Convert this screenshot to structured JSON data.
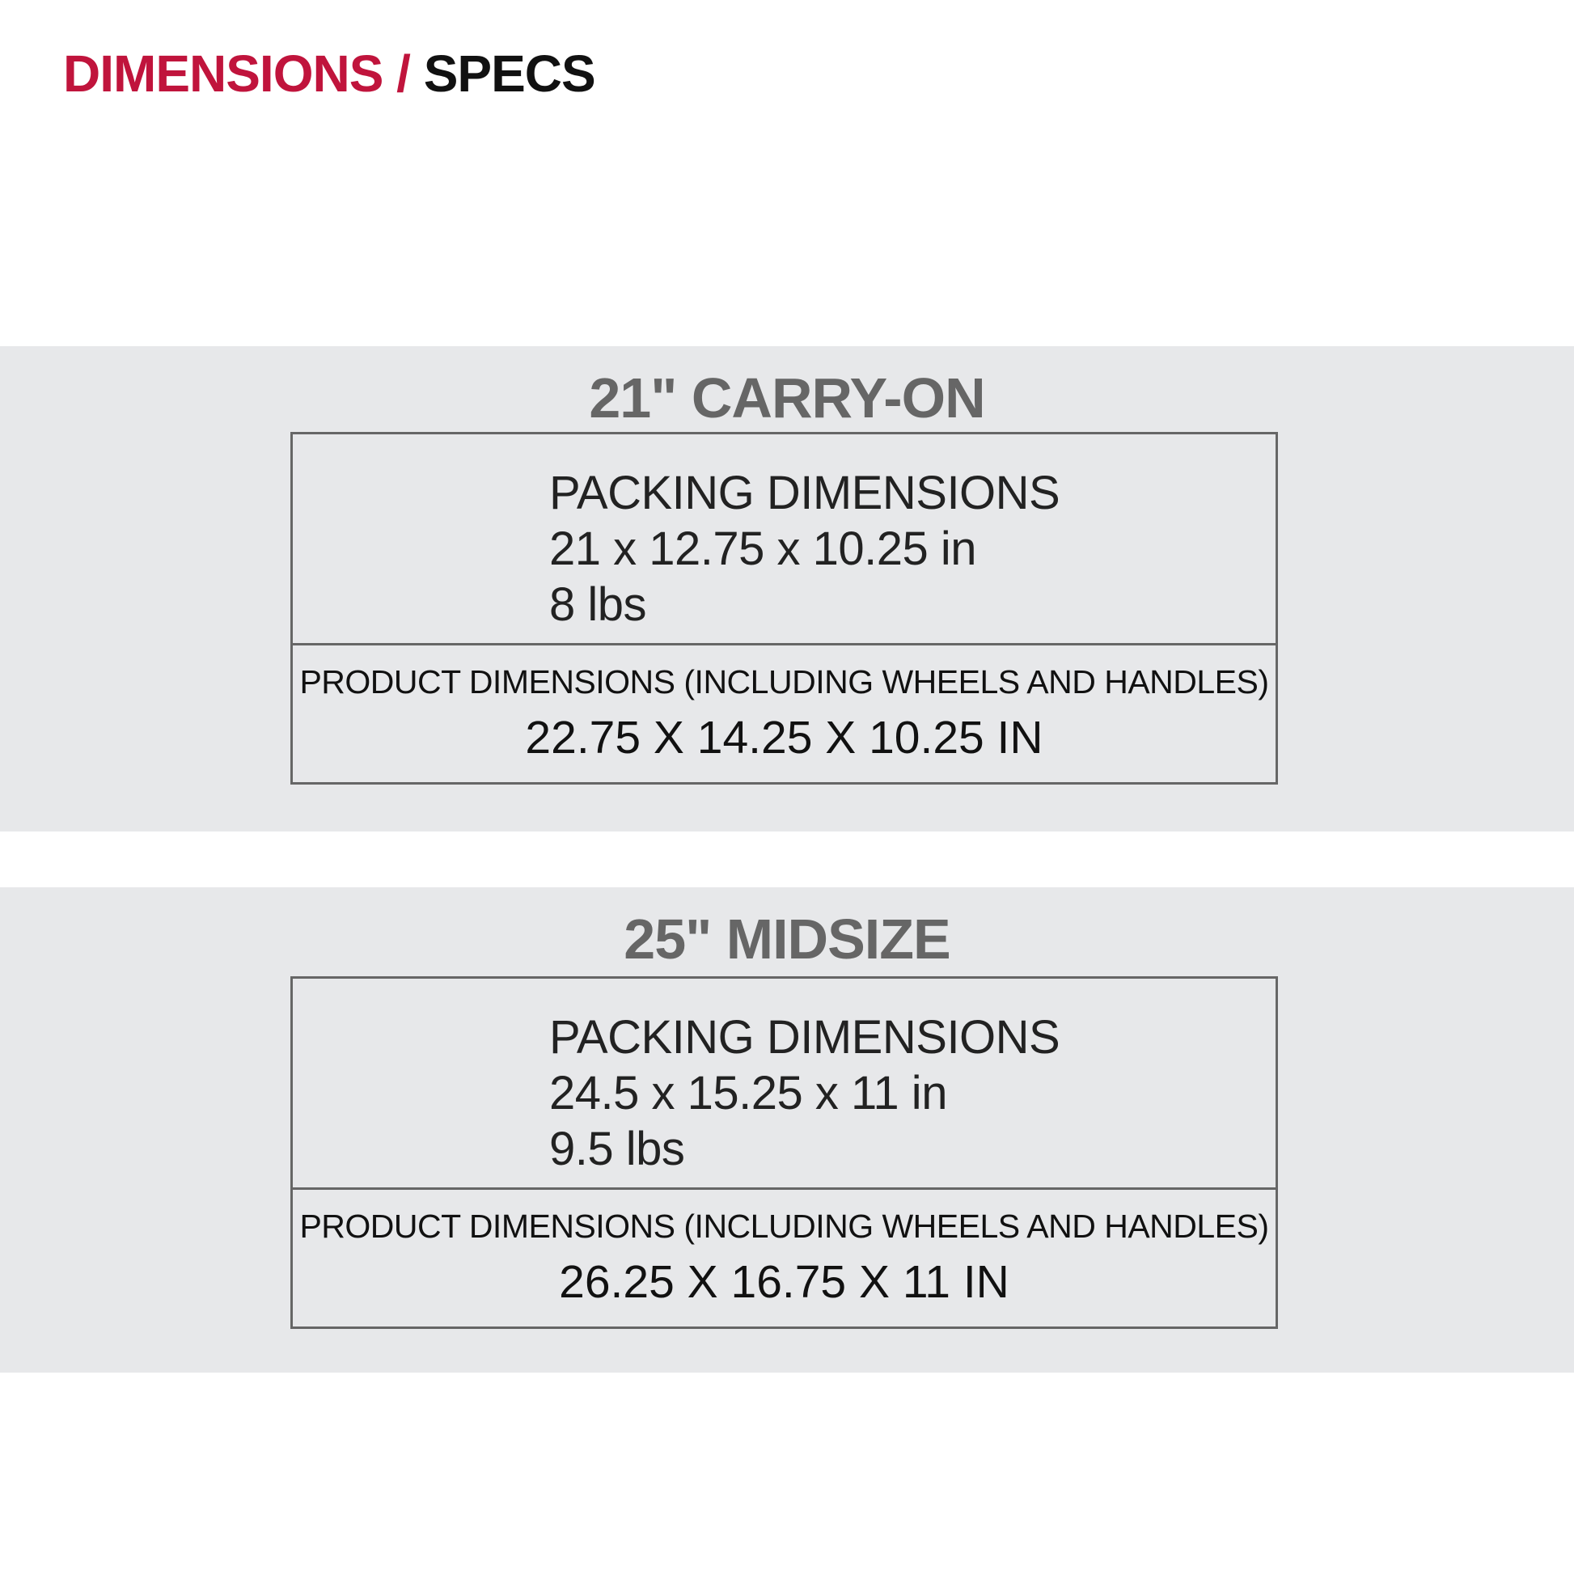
{
  "header": {
    "title_part1": "DIMENSIONS /",
    "title_part2": "SPECS"
  },
  "colors": {
    "accent": "#c0143c",
    "band_bg": "#e7e8ea",
    "heading": "#666666",
    "border": "#666666"
  },
  "products": [
    {
      "name": "21\" CARRY-ON",
      "packing_label": "PACKING DIMENSIONS",
      "packing_size": "21 x 12.75 x 10.25 in",
      "packing_weight": "8 lbs",
      "product_label": "PRODUCT DIMENSIONS (INCLUDING WHEELS AND HANDLES)",
      "product_size": "22.75 X 14.25 X 10.25 IN"
    },
    {
      "name": "25\" MIDSIZE",
      "packing_label": "PACKING DIMENSIONS",
      "packing_size": "24.5 x 15.25 x 11 in",
      "packing_weight": "9.5 lbs",
      "product_label": "PRODUCT DIMENSIONS (INCLUDING WHEELS AND HANDLES)",
      "product_size": "26.25 X 16.75 X 11 IN"
    }
  ]
}
